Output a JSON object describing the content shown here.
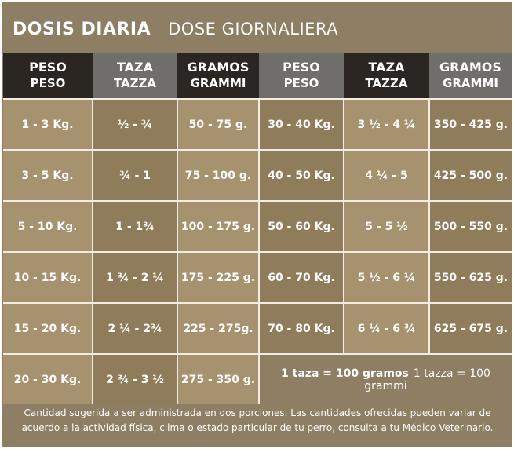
{
  "title": {
    "es": "DOSIS DIARIA",
    "it": "DOSE GIORNALIERA"
  },
  "headers": [
    {
      "es": "PESO",
      "it": "PESO"
    },
    {
      "es": "TAZA",
      "it": "TAZZA"
    },
    {
      "es": "GRAMOS",
      "it": "GRAMMI"
    },
    {
      "es": "PESO",
      "it": "PESO"
    },
    {
      "es": "TAZA",
      "it": "TAZZA"
    },
    {
      "es": "GRAMOS",
      "it": "GRAMMI"
    }
  ],
  "rows": [
    [
      "1 - 3 Kg.",
      "½ - ¾",
      "50 - 75 g.",
      "30 - 40 Kg.",
      "3 ½ - 4 ¼",
      "350 - 425 g."
    ],
    [
      "3 - 5 Kg.",
      "¾ - 1",
      "75 - 100 g.",
      "40 - 50 Kg.",
      "4 ¼ - 5",
      "425 - 500 g."
    ],
    [
      "5 - 10 Kg.",
      "1 - 1¾",
      "100 - 175 g.",
      "50 - 60 Kg.",
      "5 - 5 ½",
      "500 - 550 g."
    ],
    [
      "10 - 15 Kg.",
      "1 ¾ - 2 ¼",
      "175 - 225 g.",
      "60 - 70 Kg.",
      "5 ½ - 6 ¼",
      "550 - 625 g."
    ],
    [
      "15 - 20 Kg.",
      "2 ¼ - 2¾",
      "225 - 275g.",
      "70 - 80 Kg.",
      "6 ¼ - 6 ¾",
      "625 - 675 g."
    ]
  ],
  "last_row": [
    "20 - 30 Kg.",
    "2 ¾ - 3 ½",
    "275 - 350 g."
  ],
  "note": {
    "es": "1 taza = 100 gramos",
    "it": "1 tazza = 100 grammi"
  },
  "footer": "Cantidad sugerida a ser administrada en dos porciones. Las cantidades ofrecidas pueden variar de acuerdo a la actividad física, clima o estado particular de tu perro, consulta a tu Médico Veterinario."
}
